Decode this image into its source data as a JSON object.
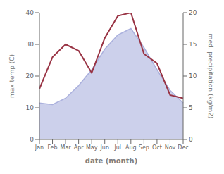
{
  "chart_data": {
    "type": "line",
    "categories": [
      "Jan",
      "Feb",
      "Mar",
      "Apr",
      "May",
      "Jun",
      "Jul",
      "Aug",
      "Sep",
      "Oct",
      "Nov",
      "Dec"
    ],
    "series": [
      {
        "type": "area",
        "color": "#aab0dd",
        "values": [
          11.5,
          11.0,
          13.0,
          17.0,
          22.0,
          28.5,
          33.0,
          35.0,
          29.0,
          22.0,
          15.5,
          11.5
        ]
      },
      {
        "type": "line",
        "color": "#993344",
        "axis": "y2",
        "values": [
          8.0,
          13.0,
          15.0,
          14.0,
          10.5,
          16.0,
          19.5,
          20.0,
          13.5,
          12.0,
          7.0,
          6.5
        ]
      }
    ],
    "xlabel": "date (month)",
    "ylabel": "max temp (C)",
    "y2label": "med. precipitation (kg/m2)",
    "ylim": [
      0,
      40
    ],
    "yticks": [
      0,
      10,
      20,
      30,
      40
    ],
    "y2lim": [
      0,
      20
    ],
    "y2ticks": [
      0,
      5,
      10,
      15,
      20
    ],
    "grid": false
  }
}
